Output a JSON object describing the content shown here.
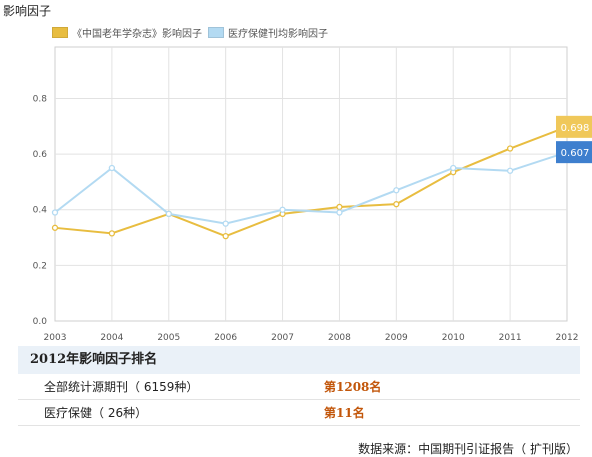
{
  "chart_data": {
    "type": "line",
    "title": "影响因子",
    "x": [
      "2003",
      "2004",
      "2005",
      "2006",
      "2007",
      "2008",
      "2009",
      "2010",
      "2011",
      "2012"
    ],
    "series": [
      {
        "name": "《中国老年学杂志》影响因子",
        "color": "#e8bd40",
        "values": [
          0.335,
          0.315,
          0.385,
          0.305,
          0.385,
          0.41,
          0.42,
          0.535,
          0.62,
          0.698
        ],
        "end_label": "0.698"
      },
      {
        "name": "医疗保健刊均影响因子",
        "color": "#b3daf2",
        "values": [
          0.39,
          0.55,
          0.385,
          0.35,
          0.4,
          0.39,
          0.47,
          0.55,
          0.54,
          0.607
        ],
        "end_label": "0.607"
      }
    ],
    "y_ticks": [
      "0.0",
      "0.2",
      "0.4",
      "0.6",
      "0.8"
    ],
    "ylim": [
      0.0,
      0.985
    ],
    "grid": true,
    "legend_position": "top-left"
  },
  "end_label_colors": [
    "#f0c85a",
    "#3e7fce"
  ],
  "ranking": {
    "header": "2012年影响因子排名",
    "rows": [
      {
        "label": "全部统计源期刊（ 6159种）",
        "value": "第1208名"
      },
      {
        "label": "医疗保健（ 26种）",
        "value": "第11名"
      }
    ]
  },
  "source_note": "数据来源：中国期刊引证报告（ 扩刊版）"
}
